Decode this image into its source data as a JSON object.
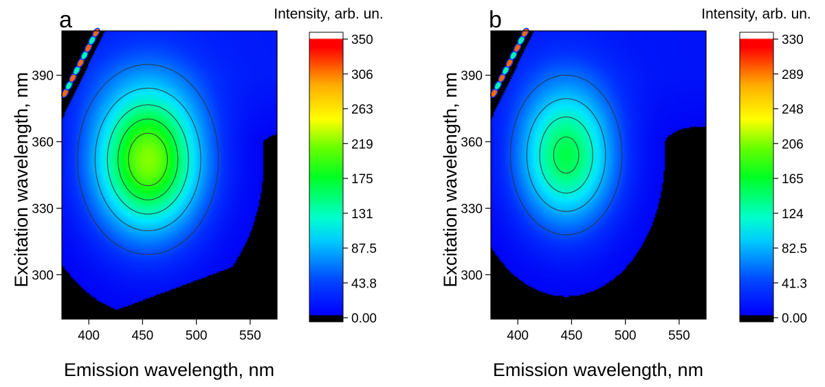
{
  "chart_data": [
    {
      "type": "heatmap",
      "panel_label": "a",
      "xlabel": "Emission wavelength, nm",
      "ylabel": "Excitation wavelength, nm",
      "xlim": [
        375,
        575
      ],
      "ylim": [
        280,
        410
      ],
      "x_ticks": [
        "400",
        "450",
        "500",
        "550"
      ],
      "y_ticks": [
        "300",
        "330",
        "360",
        "390"
      ],
      "colorbar": {
        "title": "Intensity, arb. un.",
        "range": [
          0,
          350
        ],
        "ticks": [
          "0.00",
          "43.8",
          "87.5",
          "131",
          "175",
          "219",
          "263",
          "306",
          "350"
        ]
      },
      "peak": {
        "emission": 455,
        "excitation": 352,
        "intensity": 220
      },
      "contour_levels": [
        45,
        90,
        130,
        165,
        195
      ]
    },
    {
      "type": "heatmap",
      "panel_label": "b",
      "xlabel": "Emission wavelength, nm",
      "ylabel": "Excitation wavelength, nm",
      "xlim": [
        375,
        575
      ],
      "ylim": [
        280,
        410
      ],
      "x_ticks": [
        "400",
        "450",
        "500",
        "550"
      ],
      "y_ticks": [
        "300",
        "330",
        "360",
        "390"
      ],
      "colorbar": {
        "title": "Intensity, arb. un.",
        "range": [
          0,
          330
        ],
        "ticks": [
          "0.00",
          "41.3",
          "82.5",
          "124",
          "165",
          "206",
          "248",
          "289",
          "330"
        ]
      },
      "peak": {
        "emission": 445,
        "excitation": 354,
        "intensity": 160
      },
      "contour_levels": [
        45,
        85,
        120,
        150
      ]
    }
  ]
}
